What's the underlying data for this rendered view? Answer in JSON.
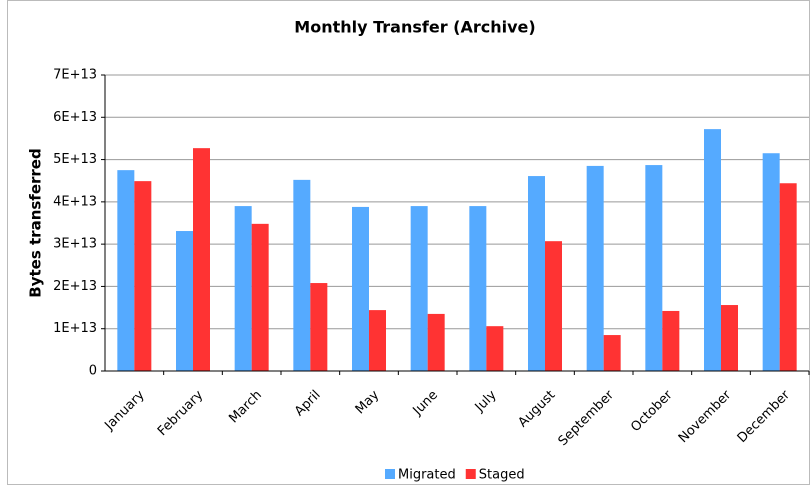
{
  "chart_data": {
    "type": "bar",
    "title": "Monthly Transfer  (Archive)",
    "y_label": "Bytes transferred",
    "categories": [
      "January",
      "February",
      "March",
      "April",
      "May",
      "June",
      "July",
      "August",
      "September",
      "October",
      "November",
      "December"
    ],
    "series": [
      {
        "name": "Migrated",
        "color": "#55aaff",
        "values": [
          47500000000000,
          33100000000000,
          39000000000000,
          45200000000000,
          38800000000000,
          39000000000000,
          39000000000000,
          46100000000000,
          48500000000000,
          48700000000000,
          57200000000000,
          51500000000000
        ]
      },
      {
        "name": "Staged",
        "color": "#ff3333",
        "values": [
          44900000000000,
          52700000000000,
          34800000000000,
          20800000000000,
          14400000000000,
          13500000000000,
          10600000000000,
          30700000000000,
          8500000000000,
          14200000000000,
          15600000000000,
          44400000000000
        ]
      }
    ],
    "ylim": [
      0,
      70000000000000
    ],
    "yticks": [
      0,
      {
        "value": 10000000000000,
        "label": "1E+13"
      },
      {
        "value": 20000000000000,
        "label": "2E+13"
      },
      {
        "value": 30000000000000,
        "label": "3E+13"
      },
      {
        "value": 40000000000000,
        "label": "4E+13"
      },
      {
        "value": 50000000000000,
        "label": "5E+13"
      },
      {
        "value": 60000000000000,
        "label": "6E+13"
      },
      {
        "value": 70000000000000,
        "label": "7E+13"
      }
    ],
    "grid": true,
    "legend": "bottom"
  }
}
